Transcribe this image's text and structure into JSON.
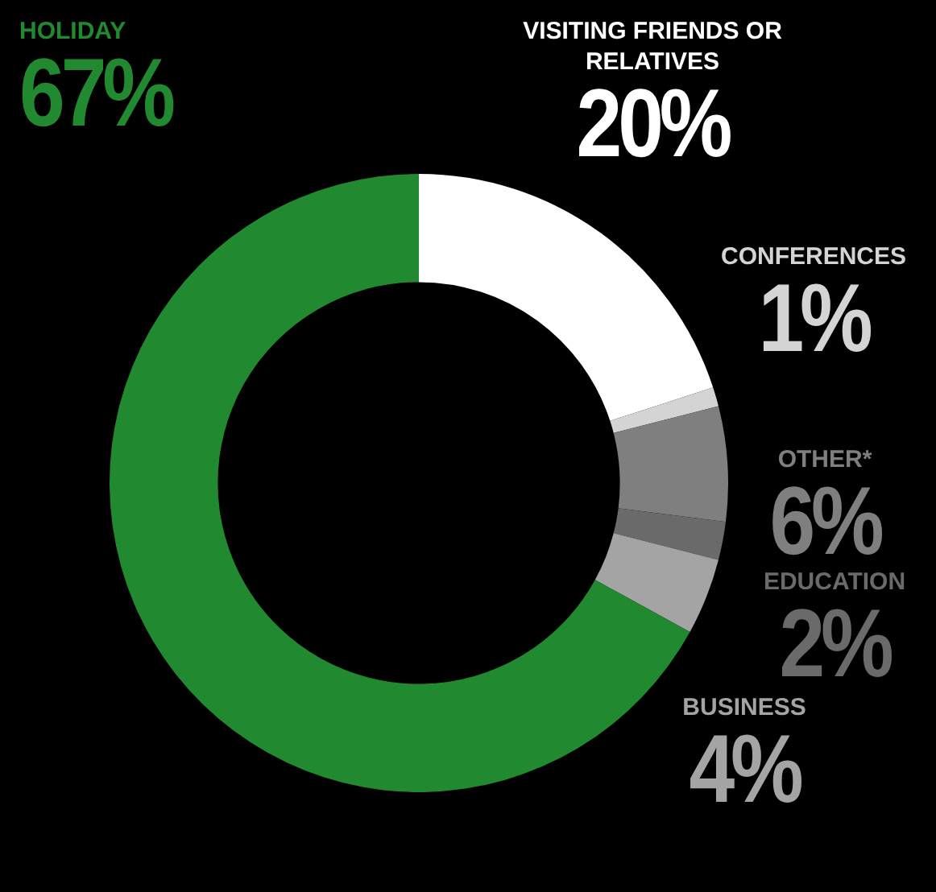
{
  "chart_data": {
    "type": "donut",
    "categories": [
      "VISITING FRIENDS OR RELATIVES",
      "CONFERENCES",
      "OTHER*",
      "EDUCATION",
      "BUSINESS",
      "HOLIDAY"
    ],
    "values": [
      20,
      1,
      6,
      2,
      4,
      67
    ],
    "value_labels": [
      "20%",
      "1%",
      "6%",
      "2%",
      "4%",
      "67%"
    ],
    "colors": [
      "#ffffff",
      "#d4d4d4",
      "#7f7f7f",
      "#6a6a6a",
      "#a4a4a4",
      "#218a31"
    ],
    "legend": false
  }
}
